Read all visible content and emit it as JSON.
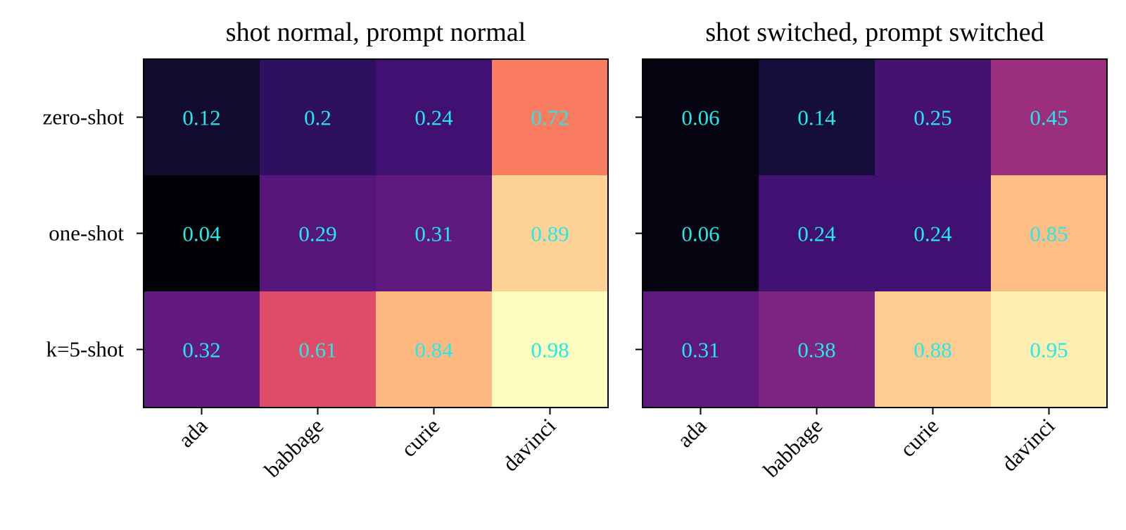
{
  "chart_data": [
    {
      "type": "heatmap",
      "title": "shot normal, prompt normal",
      "x_categories": [
        "ada",
        "babbage",
        "curie",
        "davinci"
      ],
      "y_categories": [
        "zero-shot",
        "one-shot",
        "k=5-shot"
      ],
      "values": [
        [
          0.12,
          0.2,
          0.24,
          0.72
        ],
        [
          0.04,
          0.29,
          0.31,
          0.89
        ],
        [
          0.32,
          0.61,
          0.84,
          0.98
        ]
      ],
      "cell_labels": [
        [
          "0.12",
          "0.2",
          "0.24",
          "0.72"
        ],
        [
          "0.04",
          "0.29",
          "0.31",
          "0.89"
        ],
        [
          "0.32",
          "0.61",
          "0.84",
          "0.98"
        ]
      ],
      "colormap": "magma",
      "show_y_tick_labels": true
    },
    {
      "type": "heatmap",
      "title": "shot switched, prompt switched",
      "x_categories": [
        "ada",
        "babbage",
        "curie",
        "davinci"
      ],
      "y_categories": [
        "zero-shot",
        "one-shot",
        "k=5-shot"
      ],
      "values": [
        [
          0.06,
          0.14,
          0.25,
          0.45
        ],
        [
          0.06,
          0.24,
          0.24,
          0.85
        ],
        [
          0.31,
          0.38,
          0.88,
          0.95
        ]
      ],
      "cell_labels": [
        [
          "0.06",
          "0.14",
          "0.25",
          "0.45"
        ],
        [
          "0.06",
          "0.24",
          "0.24",
          "0.85"
        ],
        [
          "0.31",
          "0.38",
          "0.88",
          "0.95"
        ]
      ],
      "colormap": "magma",
      "show_y_tick_labels": false
    }
  ],
  "colors": {
    "cell_text": "#22eaea",
    "frame": "#000000"
  }
}
